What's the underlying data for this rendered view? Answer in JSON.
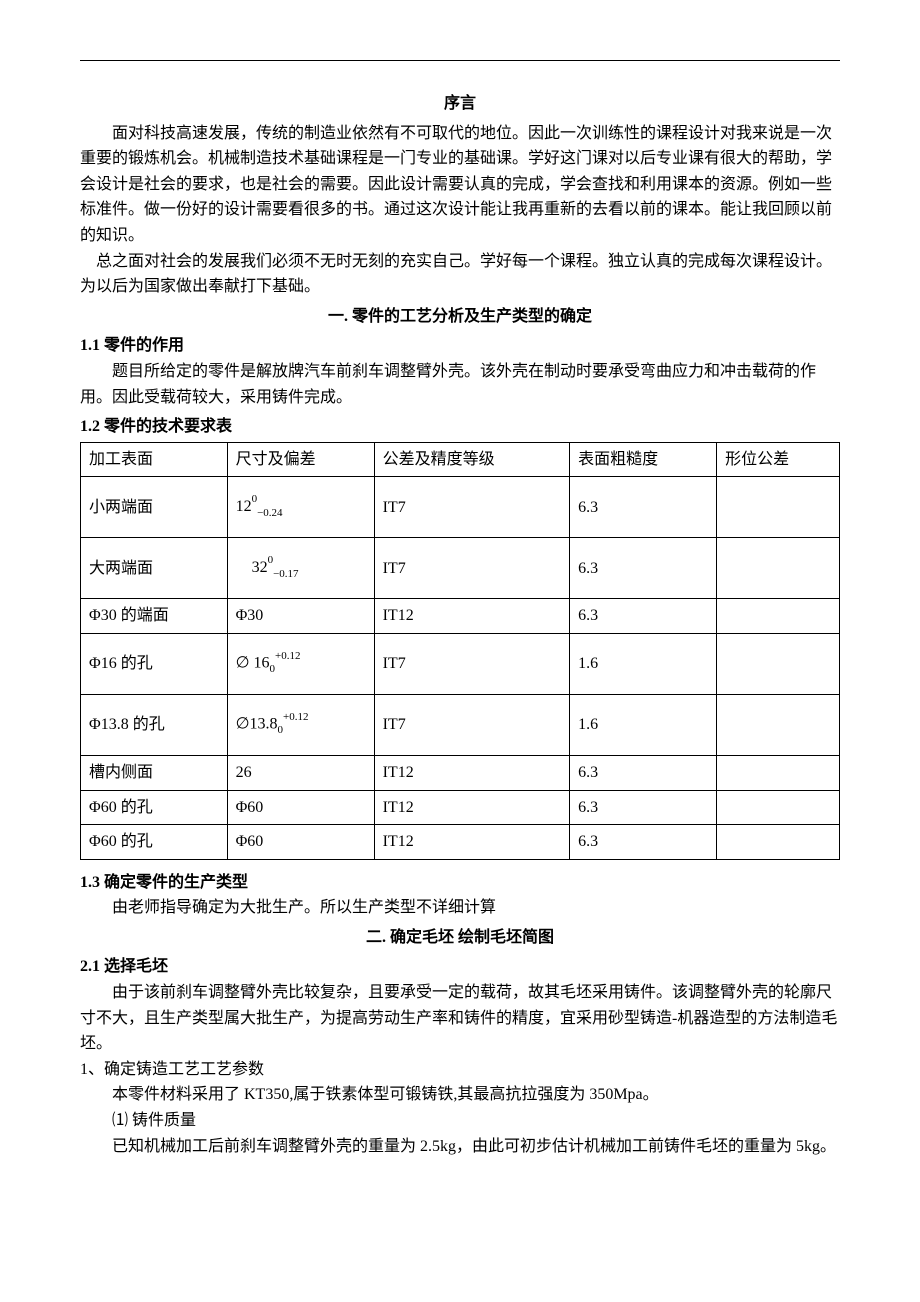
{
  "preface": {
    "heading": "序言",
    "p1": "面对科技高速发展，传统的制造业依然有不可取代的地位。因此一次训练性的课程设计对我来说是一次重要的锻炼机会。机械制造技术基础课程是一门专业的基础课。学好这门课对以后专业课有很大的帮助，学会设计是社会的要求，也是社会的需要。因此设计需要认真的完成，学会查找和利用课本的资源。例如一些标准件。做一份好的设计需要看很多的书。通过这次设计能让我再重新的去看以前的课本。能让我回顾以前的知识。",
    "p2": "总之面对社会的发展我们必须不无时无刻的充实自己。学好每一个课程。独立认真的完成每次课程设计。为以后为国家做出奉献打下基础。"
  },
  "sec1": {
    "heading": "一. 零件的工艺分析及生产类型的确定",
    "s1_1_head": "1.1 零件的作用",
    "s1_1_body": "题目所给定的零件是解放牌汽车前刹车调整臂外壳。该外壳在制动时要承受弯曲应力和冲击载荷的作用。因此受载荷较大，采用铸件完成。",
    "s1_2_head": "1.2 零件的技术要求表",
    "s1_3_head": "1.3 确定零件的生产类型",
    "s1_3_body": "由老师指导确定为大批生产。所以生产类型不详细计算"
  },
  "table": {
    "headers": [
      "加工表面",
      "尺寸及偏差",
      "公差及精度等级",
      "表面粗糙度",
      "形位公差"
    ],
    "rows": [
      {
        "surf": "小两端面",
        "dim_base": "12",
        "dim_up": "0",
        "dim_low": "−0.24",
        "grade": "IT7",
        "rough": "6.3",
        "geo": "",
        "tall": true
      },
      {
        "surf": "大两端面",
        "dim_base": "32",
        "dim_up": "0",
        "dim_low": "−0.17",
        "grade": "IT7",
        "rough": "6.3",
        "geo": "",
        "tall": true,
        "indent_dim": true
      },
      {
        "surf": "Φ30 的端面",
        "dim_plain": "Φ30",
        "grade": "IT12",
        "rough": "6.3",
        "geo": ""
      },
      {
        "surf": "Φ16 的孔",
        "dim_prefix": "∅  16",
        "dim_sub0": "0",
        "dim_up": "+0.12",
        "grade": "IT7",
        "rough": "1.6",
        "geo": "",
        "tall": true
      },
      {
        "surf": "Φ13.8 的孔",
        "dim_prefix": "∅13.8",
        "dim_sub0": "0",
        "dim_up": "+0.12",
        "grade": "IT7",
        "rough": "1.6",
        "geo": "",
        "tall": true
      },
      {
        "surf": "槽内侧面",
        "dim_plain": "26",
        "grade": "IT12",
        "rough": "6.3",
        "geo": ""
      },
      {
        "surf": "Φ60 的孔",
        "dim_plain": "Φ60",
        "grade": "IT12",
        "rough": "6.3",
        "geo": ""
      },
      {
        "surf": "Φ60 的孔",
        "dim_plain": "Φ60",
        "grade": "IT12",
        "rough": "6.3",
        "geo": ""
      }
    ]
  },
  "sec2": {
    "heading": "二. 确定毛坯 绘制毛坯简图",
    "s2_1_head": "2.1 选择毛坯",
    "s2_1_body": "由于该前刹车调整臂外壳比较复杂，且要承受一定的载荷，故其毛坯采用铸件。该调整臂外壳的轮廓尺寸不大，且生产类型属大批生产，为提高劳动生产率和铸件的精度，宜采用砂型铸造-机器造型的方法制造毛坯。",
    "item1_head": "1、确定铸造工艺工艺参数",
    "item1_body": "本零件材料采用了 KT350,属于铁素体型可锻铸铁,其最高抗拉强度为 350Mpa。",
    "sub1_head": "⑴ 铸件质量",
    "sub1_body": "已知机械加工后前刹车调整臂外壳的重量为 2.5kg，由此可初步估计机械加工前铸件毛坯的重量为 5kg。"
  }
}
